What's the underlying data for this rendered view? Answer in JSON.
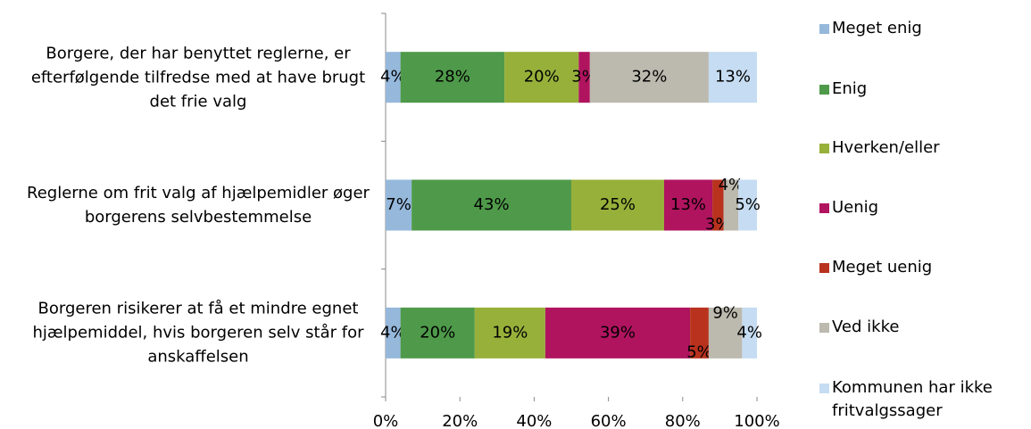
{
  "chart_data": {
    "type": "stacked-bar-horizontal",
    "categories": [
      "Borgere, der har benyttet reglerne, er efterfølgende tilfredse med at have brugt det frie valg",
      "Reglerne om frit valg af hjælpemidler øger borgerens selvbestemmelse",
      "Borgeren risikerer at få et mindre egnet hjælpemiddel, hvis borgeren selv står for anskaffelsen"
    ],
    "series": [
      {
        "name": "Meget enig",
        "color": "#95b8db",
        "values": [
          4,
          7,
          4
        ],
        "value_labels": [
          "4%",
          "7%",
          "4%"
        ]
      },
      {
        "name": "Enig",
        "color": "#4f9a4a",
        "values": [
          28,
          43,
          20
        ],
        "value_labels": [
          "28%",
          "43%",
          "20%"
        ]
      },
      {
        "name": "Hverken/eller",
        "color": "#97b03a",
        "values": [
          20,
          25,
          19
        ],
        "value_labels": [
          "20%",
          "25%",
          "19%"
        ]
      },
      {
        "name": "Uenig",
        "color": "#b0145f",
        "values": [
          3,
          13,
          39
        ],
        "value_labels": [
          "3%",
          "13%",
          "39%"
        ]
      },
      {
        "name": "Meget uenig",
        "color": "#b8321e",
        "values": [
          null,
          3,
          5
        ],
        "value_labels": [
          null,
          "3%",
          "5%"
        ]
      },
      {
        "name": "Ved ikke",
        "color": "#bcb9ae",
        "values": [
          32,
          4,
          9
        ],
        "value_labels": [
          "32%",
          "4%",
          "9%"
        ]
      },
      {
        "name": "Kommunen har ikke fritvalgssager",
        "color": "#c5dcf2",
        "values": [
          13,
          5,
          4
        ],
        "value_labels": [
          "13%",
          "5%",
          "4%"
        ]
      }
    ],
    "xlim": [
      0,
      100
    ],
    "xticks": [
      {
        "value": 0,
        "label": "0%"
      },
      {
        "value": 20,
        "label": "20%"
      },
      {
        "value": 40,
        "label": "40%"
      },
      {
        "value": 60,
        "label": "60%"
      },
      {
        "value": 80,
        "label": "80%"
      },
      {
        "value": 100,
        "label": "100%"
      }
    ],
    "legend": "right"
  }
}
